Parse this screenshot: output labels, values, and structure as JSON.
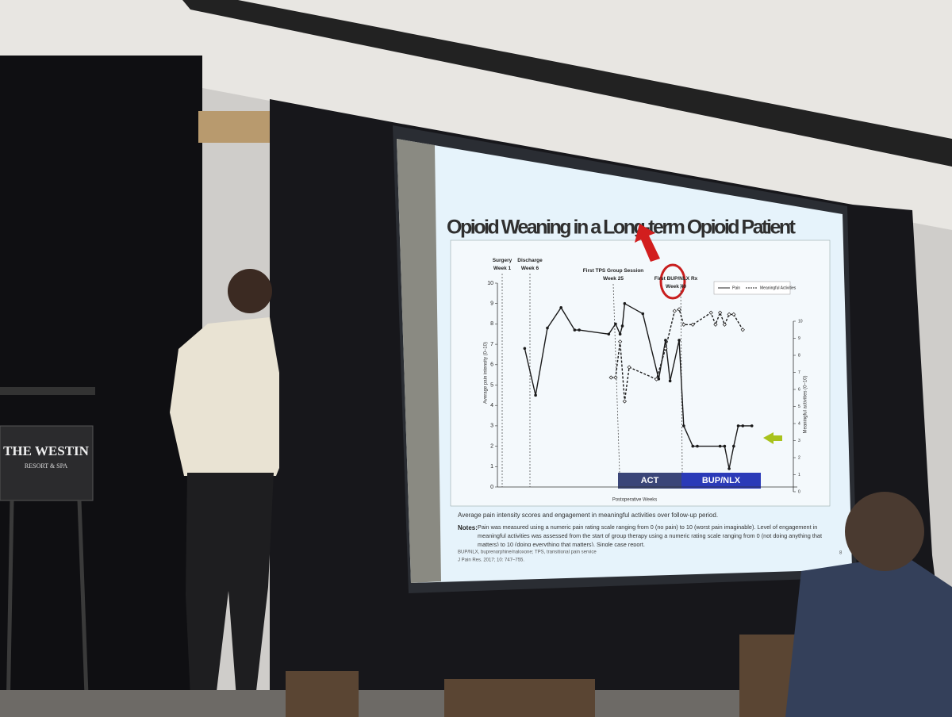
{
  "slide": {
    "title": "Opioid Weaning in a Long-term Opioid Patient",
    "caption": "Average pain intensity scores and engagement in meaningful activities over follow-up period.",
    "notes_label": "Notes:",
    "notes": "Pain was measured using a numeric pain rating scale ranging from 0 (no pain) to 10 (worst pain imaginable). Level of engagement in meaningful activities was assessed from the start of group therapy using a numeric rating scale ranging from 0 (not doing anything that matters) to 10 (doing everything that matters). Single case report.",
    "abbreviations": "BUP/NLX, buprenorphine/naloxone; TPS, transitional pain service",
    "reference": "J Pain Res. 2017; 10: 747–755.",
    "page": "8"
  },
  "chart_data": {
    "type": "line",
    "xlabel": "Postoperative Weeks",
    "ylabel": "Average pain intensity (0–10)",
    "y2label": "Meaningful activities (0–10)",
    "xlim": [
      0,
      66
    ],
    "ylim": [
      0,
      10
    ],
    "yticks": [
      0,
      1,
      2,
      3,
      4,
      5,
      6,
      7,
      8,
      9,
      10
    ],
    "y2lim": [
      0,
      10
    ],
    "y2ticks": [
      0,
      1,
      2,
      3,
      4,
      5,
      6,
      7,
      8,
      9,
      10
    ],
    "annotations": [
      "Surgery\nWeek 1",
      "Discharge\nWeek 6",
      "First TPS Group Session\nWeek 25",
      "First BUP/NLX Rx\nWeek 40"
    ],
    "phases": [
      "ACT",
      "BUP/NLX"
    ],
    "series": [
      {
        "name": "Pain",
        "color": "#1a1a1a",
        "x": [
          6,
          8.4,
          11,
          14,
          17,
          18,
          24.5,
          26,
          27,
          27.5,
          28,
          32,
          35.5,
          37,
          38,
          40,
          41,
          43,
          44,
          49,
          50,
          51,
          52,
          53,
          54,
          56
        ],
        "values": [
          6.8,
          4.5,
          7.8,
          8.8,
          7.7,
          7.7,
          7.5,
          8,
          7.5,
          7.9,
          9,
          8.5,
          5.3,
          7.2,
          5.2,
          7.2,
          3,
          2,
          2,
          2,
          2,
          0.9,
          2,
          3,
          3,
          3
        ]
      },
      {
        "name": "Meaningful Activities",
        "color": "#1a1a1a",
        "axis": "y2",
        "x": [
          25,
          26,
          27,
          28,
          29,
          35,
          37,
          39,
          40,
          41,
          43,
          47,
          48,
          49,
          50,
          51,
          52,
          54
        ],
        "values": [
          6.7,
          6.7,
          8.8,
          5.3,
          7.3,
          6.6,
          8.4,
          10.6,
          10.7,
          9.8,
          9.8,
          10.5,
          9.8,
          10.5,
          9.8,
          10.4,
          10.4,
          9.5
        ]
      }
    ]
  },
  "sign": {
    "brand": "THE WESTIN",
    "sub": "RESORT & SPA"
  }
}
